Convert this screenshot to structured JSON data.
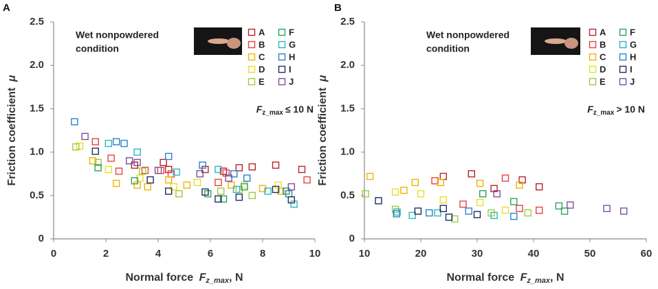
{
  "chart_data": [
    {
      "type": "scatter",
      "panel": "A",
      "annotation": [
        "Wet nonpowdered",
        "condition"
      ],
      "condition": {
        "var": "F",
        "sub": "z_max",
        "tail": "≤ 10 N"
      },
      "x_label": {
        "text": "Normal force ",
        "var": "F",
        "sub": "z_max",
        "tail": ", N"
      },
      "y_label": {
        "text": "Friction coefficient ",
        "var": "μ"
      },
      "xlim": [
        0,
        10
      ],
      "xticks": [
        0,
        2,
        4,
        6,
        8,
        10
      ],
      "ylim": [
        0,
        2.5
      ],
      "yticks": [
        0,
        0.5,
        {
          "value": 1,
          "label": "1.0"
        },
        1.5,
        {
          "value": 2,
          "label": "2.0"
        },
        2.5
      ],
      "series": [
        {
          "name": "A",
          "color": "#b5232b",
          "x": [
            3.1,
            4.2,
            4.4,
            5.8,
            6.5,
            7.1,
            7.6,
            8.5,
            9.5
          ],
          "values": [
            0.85,
            0.88,
            0.8,
            0.8,
            0.78,
            0.82,
            0.83,
            0.85,
            0.8
          ]
        },
        {
          "name": "B",
          "color": "#e8403c",
          "x": [
            1.6,
            2.2,
            2.5,
            3.5,
            4.1,
            4.5,
            6.3,
            6.6,
            9.7
          ],
          "values": [
            1.12,
            0.93,
            0.78,
            0.79,
            0.79,
            0.75,
            0.65,
            0.76,
            0.68
          ]
        },
        {
          "name": "C",
          "color": "#f0b400",
          "x": [
            1.5,
            2.4,
            3.2,
            3.6,
            4.4,
            5.1,
            6.8,
            8.0,
            8.7
          ],
          "values": [
            0.9,
            0.64,
            0.62,
            0.6,
            0.68,
            0.62,
            0.62,
            0.58,
            0.55
          ]
        },
        {
          "name": "D",
          "color": "#e6e02a",
          "x": [
            1.0,
            2.1,
            3.3,
            4.6,
            5.5,
            7.3,
            8.6
          ],
          "values": [
            1.07,
            0.8,
            0.7,
            0.6,
            0.65,
            0.62,
            0.62
          ]
        },
        {
          "name": "E",
          "color": "#9ccc3c",
          "x": [
            0.85,
            1.7,
            3.4,
            4.8,
            6.4,
            7.1,
            7.6
          ],
          "values": [
            1.06,
            0.88,
            0.78,
            0.52,
            0.55,
            0.57,
            0.5
          ]
        },
        {
          "name": "F",
          "color": "#2ca25f",
          "x": [
            1.7,
            3.1,
            5.9,
            6.5,
            7.3,
            8.9
          ],
          "values": [
            0.82,
            0.67,
            0.52,
            0.46,
            0.6,
            0.55
          ]
        },
        {
          "name": "G",
          "color": "#2bb5c0",
          "x": [
            2.1,
            3.2,
            4.7,
            6.3,
            7.0,
            8.2,
            9.2
          ],
          "values": [
            1.1,
            1.0,
            0.77,
            0.8,
            0.57,
            0.55,
            0.4
          ]
        },
        {
          "name": "H",
          "color": "#2a7fd0",
          "x": [
            0.8,
            2.4,
            2.7,
            4.4,
            5.7,
            6.9,
            7.4,
            9.0
          ],
          "values": [
            1.35,
            1.12,
            1.1,
            0.95,
            0.85,
            0.75,
            0.7,
            0.52
          ]
        },
        {
          "name": "I",
          "color": "#1f2d5c",
          "x": [
            1.6,
            3.7,
            4.4,
            5.8,
            6.3,
            7.1,
            8.5,
            9.1
          ],
          "values": [
            1.01,
            0.68,
            0.55,
            0.54,
            0.46,
            0.48,
            0.57,
            0.45
          ]
        },
        {
          "name": "J",
          "color": "#7a4fa0",
          "x": [
            1.2,
            2.9,
            3.2,
            4.0,
            5.6,
            6.7,
            9.1
          ],
          "values": [
            1.18,
            0.9,
            0.88,
            0.79,
            0.75,
            0.7,
            0.6
          ]
        }
      ]
    },
    {
      "type": "scatter",
      "panel": "B",
      "annotation": [
        "Wet nonpowdered",
        "condition"
      ],
      "condition": {
        "var": "F",
        "sub": "z_max",
        "tail": "> 10 N"
      },
      "x_label": {
        "text": "Normal force ",
        "var": "F",
        "sub": "z_max",
        "tail": ", N"
      },
      "y_label": {
        "text": "Friction coefficient ",
        "var": "μ"
      },
      "xlim": [
        10,
        60
      ],
      "xticks": [
        10,
        20,
        30,
        40,
        50,
        60
      ],
      "ylim": [
        0,
        2.5
      ],
      "yticks": [
        0,
        0.5,
        {
          "value": 1,
          "label": "1.0"
        },
        1.5,
        {
          "value": 2,
          "label": "2.0"
        },
        2.5
      ],
      "series": [
        {
          "name": "A",
          "color": "#b5232b",
          "x": [
            24,
            29,
            33,
            38,
            41
          ],
          "values": [
            0.72,
            0.75,
            0.58,
            0.68,
            0.6
          ]
        },
        {
          "name": "B",
          "color": "#e8403c",
          "x": [
            22.5,
            27.5,
            35,
            37.5,
            41
          ],
          "values": [
            0.67,
            0.4,
            0.7,
            0.35,
            0.33
          ]
        },
        {
          "name": "C",
          "color": "#f0b400",
          "x": [
            11,
            17,
            19,
            23.5,
            30.5,
            37.5
          ],
          "values": [
            0.72,
            0.56,
            0.65,
            0.65,
            0.64,
            0.62
          ]
        },
        {
          "name": "D",
          "color": "#e6e02a",
          "x": [
            15.5,
            20,
            24,
            30.5,
            35
          ],
          "values": [
            0.54,
            0.52,
            0.45,
            0.42,
            0.33
          ]
        },
        {
          "name": "E",
          "color": "#9ccc3c",
          "x": [
            10.2,
            15.5,
            26,
            32.5,
            39
          ],
          "values": [
            0.52,
            0.34,
            0.23,
            0.3,
            0.3
          ]
        },
        {
          "name": "F",
          "color": "#2ca25f",
          "x": [
            31,
            36.5,
            44.5,
            45.5
          ],
          "values": [
            0.52,
            0.43,
            0.38,
            0.32
          ]
        },
        {
          "name": "G",
          "color": "#2bb5c0",
          "x": [
            15.8,
            18.5,
            23,
            33
          ],
          "values": [
            0.31,
            0.27,
            0.3,
            0.27
          ]
        },
        {
          "name": "H",
          "color": "#2a7fd0",
          "x": [
            15.7,
            21.5,
            28.5,
            36.5
          ],
          "values": [
            0.29,
            0.3,
            0.32,
            0.26
          ]
        },
        {
          "name": "I",
          "color": "#1f2d5c",
          "x": [
            12.5,
            19.5,
            24,
            25,
            30
          ],
          "values": [
            0.44,
            0.32,
            0.35,
            0.25,
            0.28
          ]
        },
        {
          "name": "J",
          "color": "#7a4fa0",
          "x": [
            33.5,
            46.5,
            53,
            56
          ],
          "values": [
            0.52,
            0.39,
            0.35,
            0.32
          ]
        }
      ]
    }
  ]
}
